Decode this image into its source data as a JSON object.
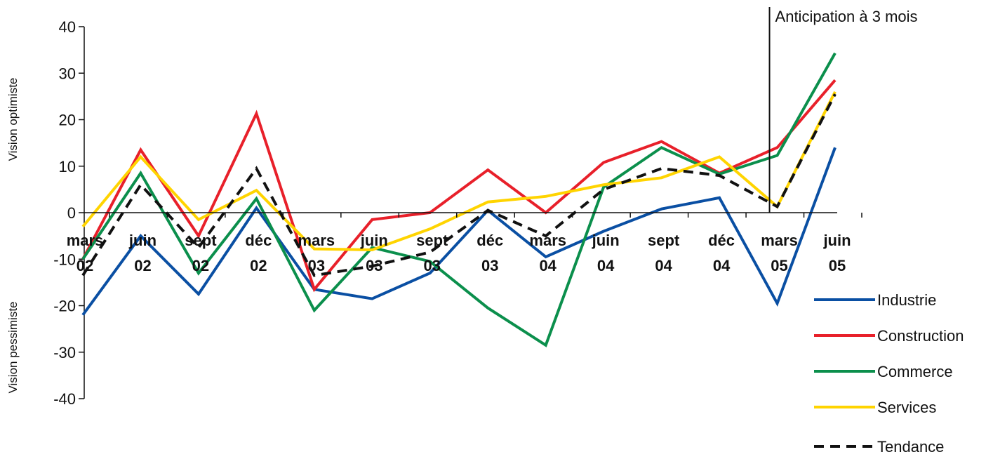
{
  "chart_data": {
    "type": "line",
    "categories": [
      [
        "mars",
        "02"
      ],
      [
        "juin",
        "02"
      ],
      [
        "sept",
        "02"
      ],
      [
        "déc",
        "02"
      ],
      [
        "mars",
        "03"
      ],
      [
        "juin",
        "03"
      ],
      [
        "sept",
        "03"
      ],
      [
        "déc",
        "03"
      ],
      [
        "mars",
        "04"
      ],
      [
        "juin",
        "04"
      ],
      [
        "sept",
        "04"
      ],
      [
        "déc",
        "04"
      ],
      [
        "mars",
        "05"
      ],
      [
        "juin",
        "05"
      ]
    ],
    "ylim": [
      -40,
      40
    ],
    "yticks": [
      40,
      30,
      20,
      10,
      0,
      -10,
      -20,
      -30,
      -40
    ],
    "ylabel_top": "Vision optimiste",
    "ylabel_bottom": "Vision pessimiste",
    "annotation": "Anticipation à 3 mois",
    "annotation_at_category": 12,
    "legend_position": "bottom-right",
    "series": [
      {
        "name": "Industrie",
        "color": "#0a4fa3",
        "dash": false,
        "values": [
          -22,
          -5,
          -17.5,
          1,
          -16.5,
          -18.5,
          -13,
          0.5,
          -9.5,
          -4,
          0.8,
          3.2,
          -19.5,
          14
        ]
      },
      {
        "name": "Construction",
        "color": "#e8202a",
        "dash": false,
        "values": [
          -10,
          13.5,
          -5,
          21.3,
          -16.5,
          -1.5,
          0,
          9.2,
          0,
          10.8,
          15.3,
          8.5,
          14,
          28.5
        ]
      },
      {
        "name": "Commerce",
        "color": "#0b8f4c",
        "dash": false,
        "values": [
          -10,
          8.5,
          -13,
          3,
          -21,
          -7.5,
          -10.5,
          -20.5,
          -28.5,
          5.5,
          14,
          8.3,
          12.3,
          34.3
        ]
      },
      {
        "name": "Services",
        "color": "#ffd400",
        "dash": false,
        "values": [
          -3,
          12,
          -1.5,
          4.8,
          -7.8,
          -8,
          -3.5,
          2.3,
          3.5,
          6,
          7.5,
          12,
          1.3,
          26
        ]
      },
      {
        "name": "Tendance",
        "color": "#111111",
        "dash": true,
        "values": [
          -13.5,
          6,
          -7.5,
          9.5,
          -13.5,
          -11.5,
          -8.5,
          0.5,
          -5,
          5,
          9.5,
          8,
          1.3,
          25.5
        ]
      }
    ]
  }
}
